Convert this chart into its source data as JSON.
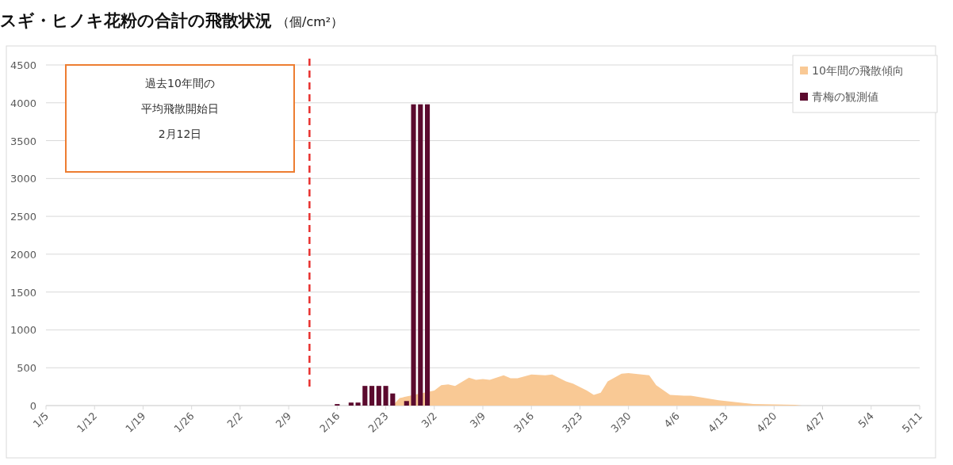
{
  "chart_data": {
    "type": "bar",
    "title": "スギ・ヒノキ花粉の合計の飛散状況",
    "subtitle": "（個/cm²）",
    "xlim": [
      "--01-05",
      "--05-11"
    ],
    "xticks": [
      {
        "value": "--01-05",
        "label": "1/5"
      },
      {
        "value": "--01-12",
        "label": "1/12"
      },
      {
        "value": "--01-19",
        "label": "1/19"
      },
      {
        "value": "--01-26",
        "label": "1/26"
      },
      {
        "value": "--02-02",
        "label": "2/2"
      },
      {
        "value": "--02-09",
        "label": "2/9"
      },
      {
        "value": "--02-16",
        "label": "2/16"
      },
      {
        "value": "--02-23",
        "label": "2/23"
      },
      {
        "value": "--03-02",
        "label": "3/2"
      },
      {
        "value": "--03-09",
        "label": "3/9"
      },
      {
        "value": "--03-16",
        "label": "3/16"
      },
      {
        "value": "--03-23",
        "label": "3/23"
      },
      {
        "value": "--03-30",
        "label": "3/30"
      },
      {
        "value": "--04-06",
        "label": "4/6"
      },
      {
        "value": "--04-13",
        "label": "4/13"
      },
      {
        "value": "--04-20",
        "label": "4/20"
      },
      {
        "value": "--04-27",
        "label": "4/27"
      },
      {
        "value": "--05-04",
        "label": "5/4"
      },
      {
        "value": "--05-11",
        "label": "5/11"
      }
    ],
    "ylim": [
      0,
      4500
    ],
    "yticks": [
      0,
      500,
      1000,
      1500,
      2000,
      2500,
      3000,
      3500,
      4000,
      4500
    ],
    "grid": "y",
    "legend": "top right",
    "series": [
      {
        "name": "10年間の飛散傾向",
        "type": "area",
        "color": "#f9c995",
        "x": [
          "--02-24",
          "--02-25",
          "--03-02",
          "--03-03",
          "--03-04",
          "--03-05",
          "--03-07",
          "--03-08",
          "--03-09",
          "--03-10",
          "--03-12",
          "--03-13",
          "--03-14",
          "--03-16",
          "--03-18",
          "--03-19",
          "--03-21",
          "--03-22",
          "--03-24",
          "--03-25",
          "--03-26",
          "--03-27",
          "--03-29",
          "--03-30",
          "--04-02",
          "--04-03",
          "--04-05",
          "--04-07",
          "--04-08",
          "--04-12",
          "--04-17",
          "--04-23",
          "--04-24"
        ],
        "values": [
          0,
          100,
          200,
          270,
          280,
          260,
          370,
          340,
          350,
          340,
          400,
          360,
          360,
          410,
          400,
          410,
          320,
          290,
          200,
          140,
          170,
          320,
          420,
          430,
          400,
          270,
          140,
          130,
          130,
          70,
          20,
          10,
          0
        ]
      },
      {
        "name": "青梅の観測値",
        "color": "#5b0a2e",
        "x": [
          "--02-16",
          "--02-18",
          "--02-19",
          "--02-20",
          "--02-21",
          "--02-22",
          "--02-23",
          "--02-24",
          "--02-26",
          "--02-27",
          "--02-28",
          "--03-01"
        ],
        "values": [
          20,
          40,
          40,
          260,
          260,
          260,
          260,
          160,
          60,
          3980,
          3980,
          3980
        ]
      }
    ],
    "ref_lines": [
      {
        "axis": "x",
        "value": "--02-12",
        "color": "#e8312f",
        "line_style": "dashed"
      }
    ],
    "annotations": [
      "過去10年間の",
      "平均飛散開始日",
      "2月12日"
    ]
  }
}
